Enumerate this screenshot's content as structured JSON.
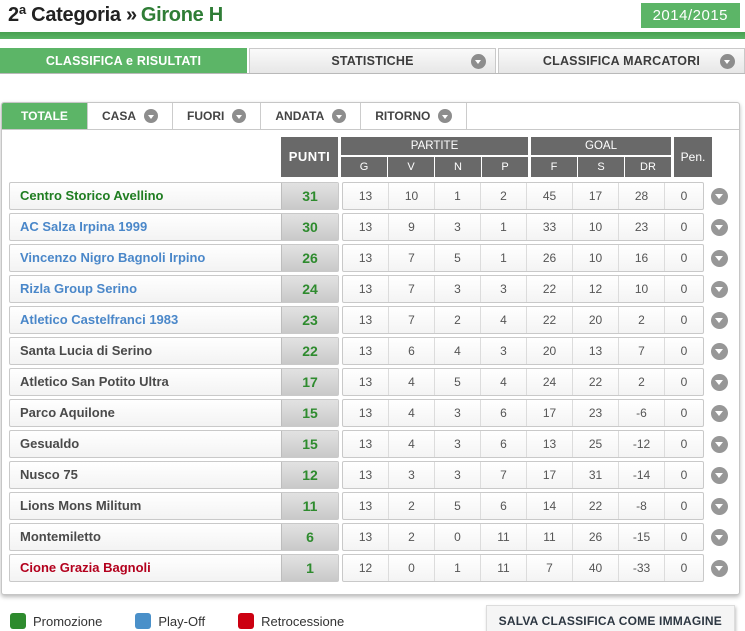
{
  "header": {
    "title_prefix": "2ª Categoria »",
    "title_highlight": "Girone H",
    "season_badge": "2014/2015"
  },
  "main_tabs": [
    {
      "label": "CLASSIFICA e RISULTATI",
      "active": true
    },
    {
      "label": "STATISTICHE",
      "active": false
    },
    {
      "label": "CLASSIFICA MARCATORI",
      "active": false
    }
  ],
  "filter_tabs": [
    {
      "label": "TOTALE",
      "active": true
    },
    {
      "label": "CASA",
      "active": false
    },
    {
      "label": "FUORI",
      "active": false
    },
    {
      "label": "ANDATA",
      "active": false
    },
    {
      "label": "RITORNO",
      "active": false
    }
  ],
  "table": {
    "header": {
      "punti": "PUNTI",
      "partite_group": "PARTITE",
      "partite_cols": [
        "G",
        "V",
        "N",
        "P"
      ],
      "goal_group": "GOAL",
      "goal_cols": [
        "F",
        "S",
        "DR"
      ],
      "pen": "Pen."
    },
    "rows": [
      {
        "name": "Centro Storico Avellino",
        "status": "promozione",
        "punti": 31,
        "g": 13,
        "v": 10,
        "n": 1,
        "p": 2,
        "f": 45,
        "s": 17,
        "dr": 28,
        "pen": 0
      },
      {
        "name": "AC Salza Irpina 1999",
        "status": "playoff",
        "punti": 30,
        "g": 13,
        "v": 9,
        "n": 3,
        "p": 1,
        "f": 33,
        "s": 10,
        "dr": 23,
        "pen": 0
      },
      {
        "name": "Vincenzo Nigro Bagnoli Irpino",
        "status": "playoff",
        "punti": 26,
        "g": 13,
        "v": 7,
        "n": 5,
        "p": 1,
        "f": 26,
        "s": 10,
        "dr": 16,
        "pen": 0
      },
      {
        "name": "Rizla Group Serino",
        "status": "playoff",
        "punti": 24,
        "g": 13,
        "v": 7,
        "n": 3,
        "p": 3,
        "f": 22,
        "s": 12,
        "dr": 10,
        "pen": 0
      },
      {
        "name": "Atletico Castelfranci 1983",
        "status": "playoff",
        "punti": 23,
        "g": 13,
        "v": 7,
        "n": 2,
        "p": 4,
        "f": 22,
        "s": 20,
        "dr": 2,
        "pen": 0
      },
      {
        "name": "Santa Lucia di Serino",
        "status": "none",
        "punti": 22,
        "g": 13,
        "v": 6,
        "n": 4,
        "p": 3,
        "f": 20,
        "s": 13,
        "dr": 7,
        "pen": 0
      },
      {
        "name": "Atletico San Potito Ultra",
        "status": "none",
        "punti": 17,
        "g": 13,
        "v": 4,
        "n": 5,
        "p": 4,
        "f": 24,
        "s": 22,
        "dr": 2,
        "pen": 0
      },
      {
        "name": "Parco Aquilone",
        "status": "none",
        "punti": 15,
        "g": 13,
        "v": 4,
        "n": 3,
        "p": 6,
        "f": 17,
        "s": 23,
        "dr": -6,
        "pen": 0
      },
      {
        "name": "Gesualdo",
        "status": "none",
        "punti": 15,
        "g": 13,
        "v": 4,
        "n": 3,
        "p": 6,
        "f": 13,
        "s": 25,
        "dr": -12,
        "pen": 0
      },
      {
        "name": "Nusco 75",
        "status": "none",
        "punti": 12,
        "g": 13,
        "v": 3,
        "n": 3,
        "p": 7,
        "f": 17,
        "s": 31,
        "dr": -14,
        "pen": 0
      },
      {
        "name": "Lions Mons Militum",
        "status": "none",
        "punti": 11,
        "g": 13,
        "v": 2,
        "n": 5,
        "p": 6,
        "f": 14,
        "s": 22,
        "dr": -8,
        "pen": 0
      },
      {
        "name": "Montemiletto",
        "status": "none",
        "punti": 6,
        "g": 13,
        "v": 2,
        "n": 0,
        "p": 11,
        "f": 11,
        "s": 26,
        "dr": -15,
        "pen": 0
      },
      {
        "name": "Cione Grazia Bagnoli",
        "status": "retrocessione",
        "punti": 1,
        "g": 12,
        "v": 0,
        "n": 1,
        "p": 11,
        "f": 7,
        "s": 40,
        "dr": -33,
        "pen": 0
      }
    ]
  },
  "legend": [
    {
      "label": "Promozione",
      "color": "#2e8b2e"
    },
    {
      "label": "Play-Off",
      "color": "#4a90c9"
    },
    {
      "label": "Retrocessione",
      "color": "#cc0011"
    }
  ],
  "actions": {
    "save_button": "SALVA CLASSIFICA COME IMMAGINE"
  },
  "colors": {
    "accent_green": "#5cb567",
    "header_gray": "#696969"
  }
}
